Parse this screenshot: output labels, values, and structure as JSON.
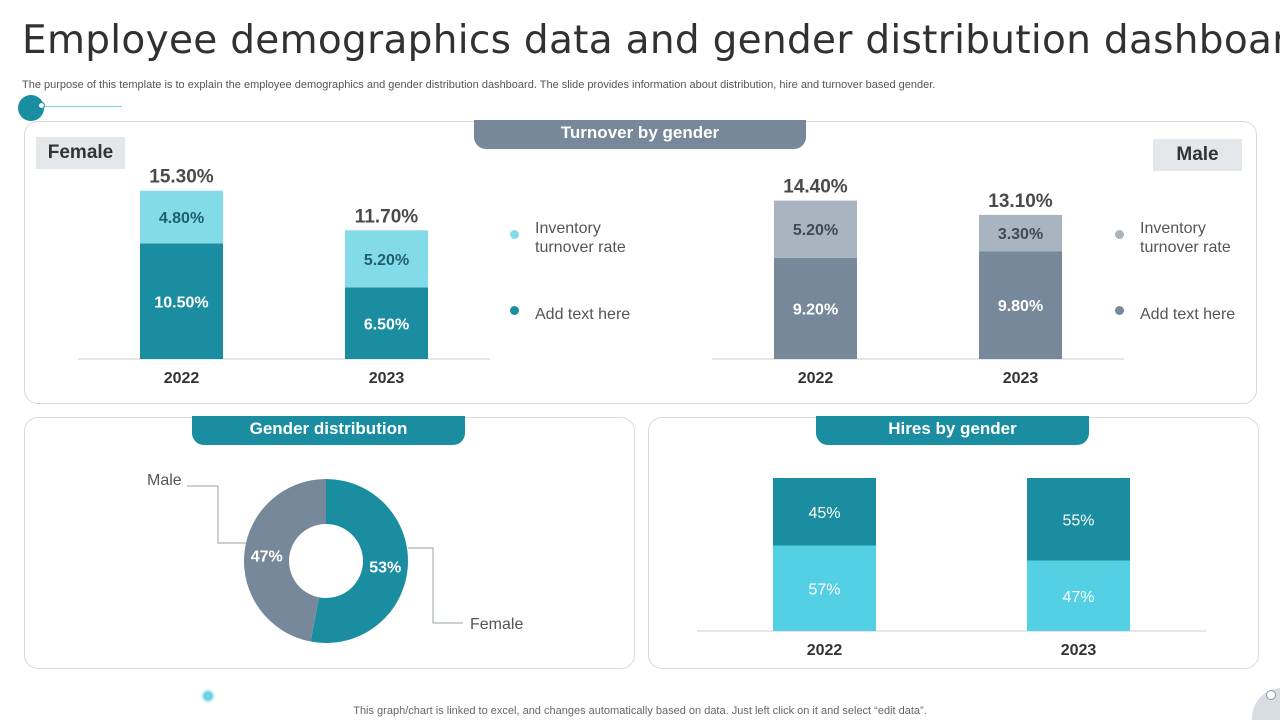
{
  "page": {
    "title": "Employee demographics data and gender distribution dashboard",
    "subtitle": "The purpose of this template is to explain the employee demographics and gender distribution dashboard. The slide provides information about distribution, hire and turnover based gender.",
    "footer": "This graph/chart is linked to excel,  and changes automatically based on data. Just left click on it and select “edit data”."
  },
  "colors": {
    "teal_dark": "#1a8da0",
    "teal_light": "#84dbe8",
    "cyan": "#54d0e4",
    "slate_dark": "#768899",
    "slate_light": "#a8b4bf",
    "axis": "#c8cdd1"
  },
  "panels": {
    "turnover": {
      "tab_label": "Turnover by gender",
      "female_label": "Female",
      "male_label": "Male"
    },
    "gender": {
      "tab_label": "Gender distribution"
    },
    "hires": {
      "tab_label": "Hires by gender"
    }
  },
  "legends": {
    "female": {
      "item1": "Inventory turnover  rate",
      "item2": "Add text here"
    },
    "male": {
      "item1": "Inventory turnover  rate",
      "item2": "Add text here"
    }
  },
  "chart_data": [
    {
      "id": "female-turnover",
      "type": "bar",
      "stacked": true,
      "title": "Female",
      "categories": [
        "2022",
        "2023"
      ],
      "series": [
        {
          "name": "Add text here",
          "values": [
            10.5,
            6.5
          ],
          "labels": [
            "10.50%",
            "6.50%"
          ]
        },
        {
          "name": "Inventory turnover rate",
          "values": [
            4.8,
            5.2
          ],
          "labels": [
            "4.80%",
            "5.20%"
          ]
        }
      ],
      "totals": [
        "15.30%",
        "11.70%"
      ],
      "ylim": [
        0,
        16
      ]
    },
    {
      "id": "male-turnover",
      "type": "bar",
      "stacked": true,
      "title": "Male",
      "categories": [
        "2022",
        "2023"
      ],
      "series": [
        {
          "name": "Add text here",
          "values": [
            9.2,
            9.8
          ],
          "labels": [
            "9.20%",
            "9.80%"
          ]
        },
        {
          "name": "Inventory turnover rate",
          "values": [
            5.2,
            3.3
          ],
          "labels": [
            "5.20%",
            "3.30%"
          ]
        }
      ],
      "totals": [
        "14.40%",
        "13.10%"
      ],
      "ylim": [
        0,
        16
      ]
    },
    {
      "id": "gender-distribution",
      "type": "pie",
      "title": "Gender distribution",
      "slices": [
        {
          "name": "Female",
          "value": 53,
          "label": "53%"
        },
        {
          "name": "Male",
          "value": 47,
          "label": "47%"
        }
      ]
    },
    {
      "id": "hires-by-gender",
      "type": "bar",
      "stacked": true,
      "title": "Hires by gender",
      "categories": [
        "2022",
        "2023"
      ],
      "series": [
        {
          "name": "bottom",
          "values": [
            57,
            47
          ],
          "labels": [
            "57%",
            "47%"
          ]
        },
        {
          "name": "top",
          "values": [
            45,
            55
          ],
          "labels": [
            "45%",
            "55%"
          ]
        }
      ]
    }
  ]
}
